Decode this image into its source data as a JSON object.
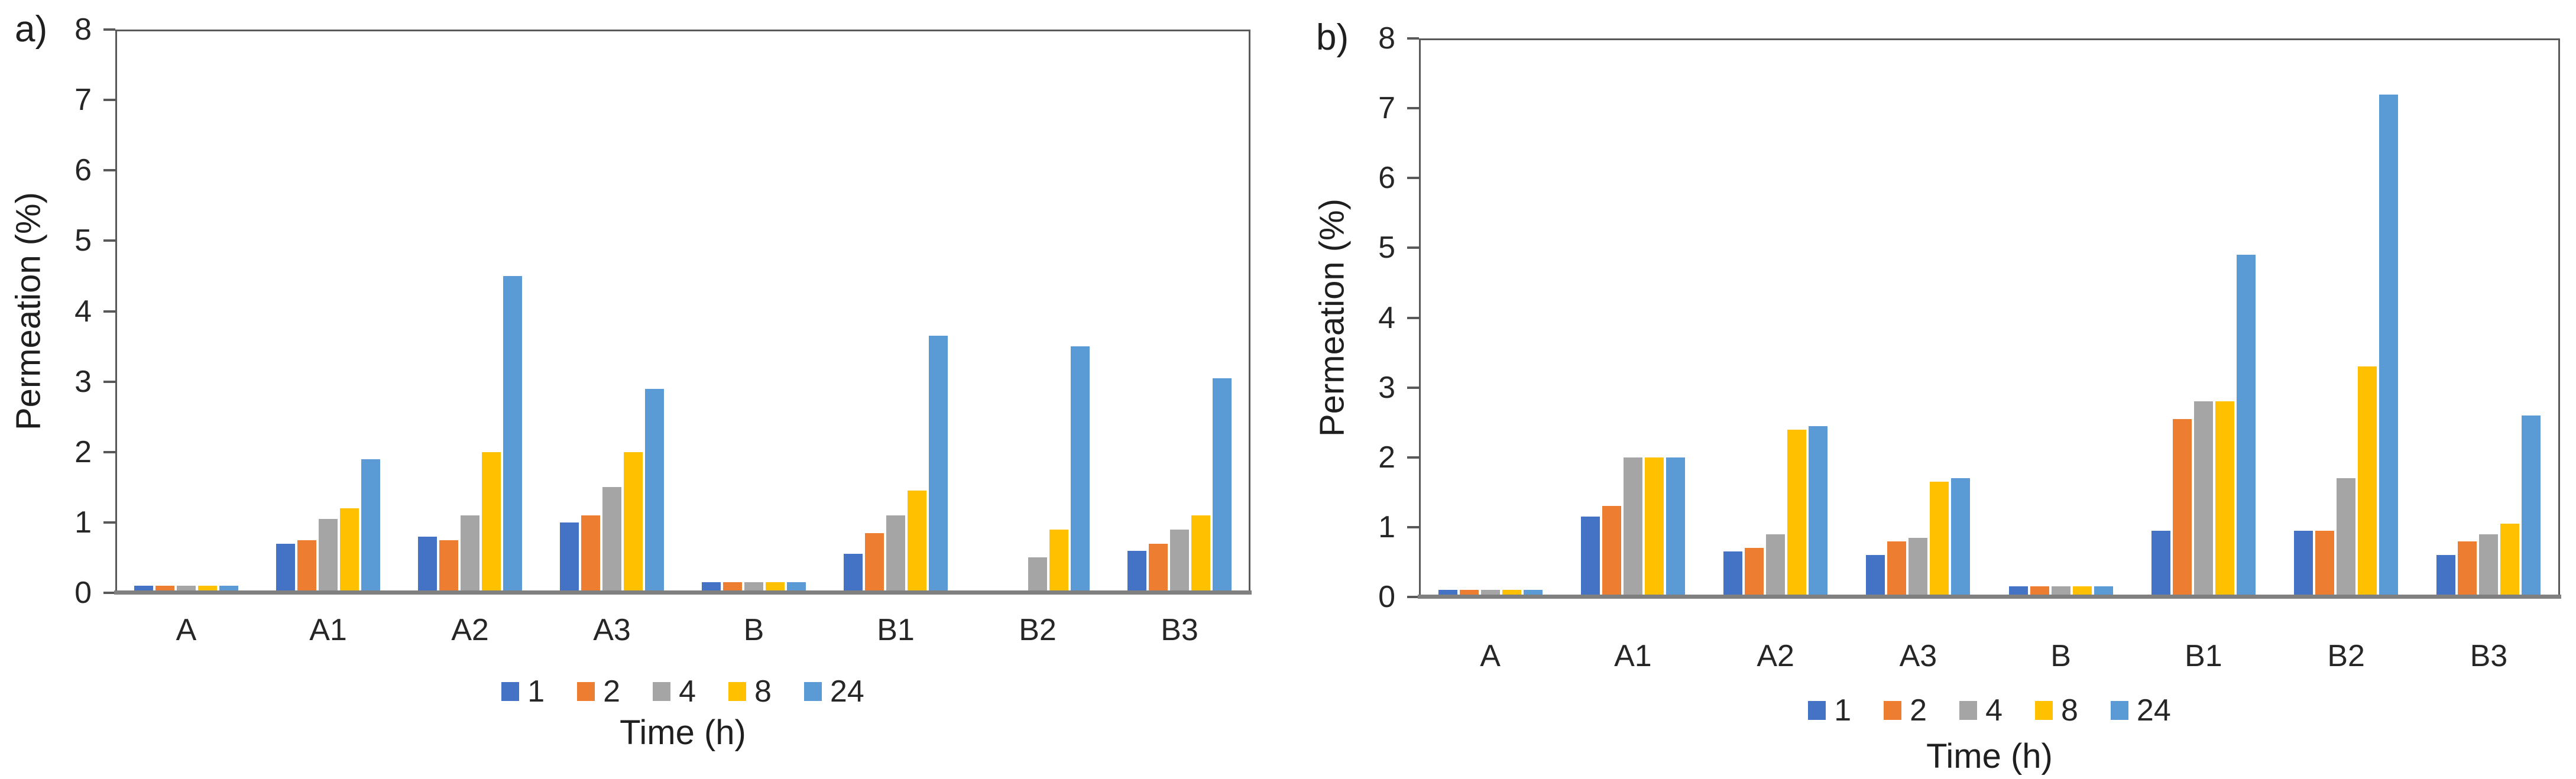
{
  "figure_title": "",
  "chart_data": [
    {
      "type": "bar",
      "panel_label": "a)",
      "title": "",
      "xlabel": "Time (h)",
      "ylabel": "Permeation (%)",
      "ylim": [
        0,
        8
      ],
      "yticks": [
        0,
        1,
        2,
        3,
        4,
        5,
        6,
        7,
        8
      ],
      "grid": false,
      "legend_position": "bottom",
      "categories": [
        "A",
        "A1",
        "A2",
        "A3",
        "B",
        "B1",
        "B2",
        "B3"
      ],
      "series": [
        {
          "name": "1",
          "color": "#4472C4",
          "values": [
            0.1,
            0.7,
            0.8,
            1.0,
            0.15,
            0.55,
            0,
            0.6
          ]
        },
        {
          "name": "2",
          "color": "#ED7D31",
          "values": [
            0.1,
            0.75,
            0.75,
            1.1,
            0.15,
            0.85,
            0,
            0.7
          ]
        },
        {
          "name": "4",
          "color": "#A5A5A5",
          "values": [
            0.1,
            1.05,
            1.1,
            1.5,
            0.15,
            1.1,
            0.5,
            0.9
          ]
        },
        {
          "name": "8",
          "color": "#FFC000",
          "values": [
            0.1,
            1.2,
            2.0,
            2.0,
            0.15,
            1.45,
            0.9,
            1.1
          ]
        },
        {
          "name": "24",
          "color": "#5B9BD5",
          "values": [
            0.1,
            1.9,
            4.5,
            2.9,
            0.15,
            3.65,
            3.5,
            3.05
          ]
        }
      ]
    },
    {
      "type": "bar",
      "panel_label": "b)",
      "title": "",
      "xlabel": "Time (h)",
      "ylabel": "Permeation (%)",
      "ylim": [
        0,
        8
      ],
      "yticks": [
        0,
        1,
        2,
        3,
        4,
        5,
        6,
        7,
        8
      ],
      "grid": false,
      "legend_position": "bottom",
      "categories": [
        "A",
        "A1",
        "A2",
        "A3",
        "B",
        "B1",
        "B2",
        "B3"
      ],
      "series": [
        {
          "name": "1",
          "color": "#4472C4",
          "values": [
            0.1,
            1.15,
            0.65,
            0.6,
            0.15,
            0.95,
            0.95,
            0.6
          ]
        },
        {
          "name": "2",
          "color": "#ED7D31",
          "values": [
            0.1,
            1.3,
            0.7,
            0.8,
            0.15,
            2.55,
            0.95,
            0.8
          ]
        },
        {
          "name": "4",
          "color": "#A5A5A5",
          "values": [
            0.1,
            2.0,
            0.9,
            0.85,
            0.15,
            2.8,
            1.7,
            0.9
          ]
        },
        {
          "name": "8",
          "color": "#FFC000",
          "values": [
            0.1,
            2.0,
            2.4,
            1.65,
            0.15,
            2.8,
            3.3,
            1.05
          ]
        },
        {
          "name": "24",
          "color": "#5B9BD5",
          "values": [
            0.1,
            2.0,
            2.45,
            1.7,
            0.15,
            4.9,
            7.2,
            2.6
          ]
        }
      ]
    }
  ],
  "colors": {
    "bar_blue": "#4472C4",
    "bar_orange": "#ED7D31",
    "bar_gray": "#A5A5A5",
    "bar_yellow": "#FFC000",
    "bar_lightblue": "#5B9BD5",
    "axis_line": "#808080",
    "plot_border": "#595959",
    "text": "#262626"
  }
}
